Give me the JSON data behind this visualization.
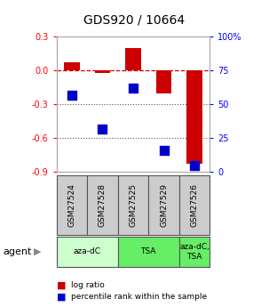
{
  "title": "GDS920 / 10664",
  "samples": [
    "GSM27524",
    "GSM27528",
    "GSM27525",
    "GSM27529",
    "GSM27526"
  ],
  "log_ratio": [
    0.07,
    -0.02,
    0.2,
    -0.2,
    -0.83
  ],
  "percentile_rank": [
    57,
    32,
    62,
    16,
    5
  ],
  "groups": [
    {
      "label": "aza-dC",
      "span": [
        0,
        2
      ],
      "color": "#ccffcc"
    },
    {
      "label": "TSA",
      "span": [
        2,
        4
      ],
      "color": "#66ee66"
    },
    {
      "label": "aza-dC,\nTSA",
      "span": [
        4,
        5
      ],
      "color": "#66ee66"
    }
  ],
  "ylim_left": [
    -0.9,
    0.3
  ],
  "ylim_right": [
    0,
    100
  ],
  "left_ticks": [
    0.3,
    0.0,
    -0.3,
    -0.6,
    -0.9
  ],
  "right_ticks": [
    100,
    75,
    50,
    25,
    0
  ],
  "bar_color": "#cc0000",
  "dot_color": "#0000cc",
  "zeroline_color": "#cc0000",
  "grid_color": "#555555",
  "legend_log_ratio": "log ratio",
  "legend_percentile": "percentile rank within the sample"
}
